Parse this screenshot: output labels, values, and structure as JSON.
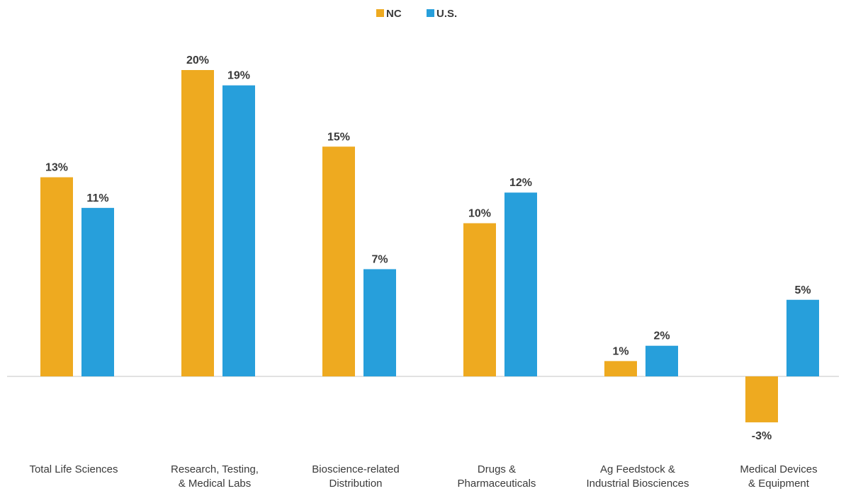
{
  "chart_data": {
    "type": "bar",
    "categories": [
      [
        "Total Life Sciences"
      ],
      [
        "Research, Testing,",
        "& Medical Labs"
      ],
      [
        "Bioscience-related",
        "Distribution"
      ],
      [
        "Drugs &",
        "Pharmaceuticals"
      ],
      [
        "Ag Feedstock &",
        "Industrial Biosciences"
      ],
      [
        "Medical Devices",
        "& Equipment"
      ]
    ],
    "series": [
      {
        "name": "NC",
        "color": "#EEAA20",
        "values": [
          13,
          20,
          15,
          10,
          1,
          -3
        ],
        "labels": [
          "13%",
          "20%",
          "15%",
          "10%",
          "1%",
          "-3%"
        ]
      },
      {
        "name": "U.S.",
        "color": "#279FDB",
        "values": [
          11,
          19,
          7,
          12,
          2,
          5
        ],
        "labels": [
          "11%",
          "19%",
          "7%",
          "12%",
          "2%",
          "5%"
        ]
      }
    ],
    "title": "",
    "xlabel": "",
    "ylabel": "",
    "ylim": [
      -3.5,
      21
    ],
    "grid": false,
    "legend_position": "top-center",
    "zero_line_color": "#D9D9D9"
  }
}
